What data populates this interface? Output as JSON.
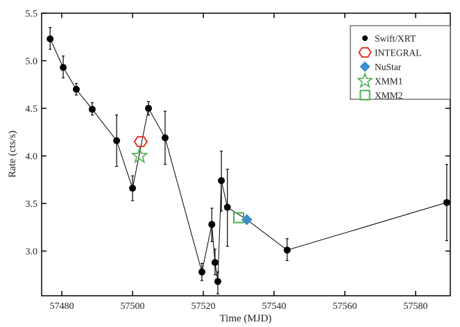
{
  "chart_data": {
    "type": "scatter",
    "xlabel": "Time (MJD)",
    "ylabel": "Rate (cts/s)",
    "xlim": [
      57474.3,
      57589.8
    ],
    "ylim": [
      2.53,
      5.5
    ],
    "xticks": [
      57480,
      57500,
      57520,
      57540,
      57560,
      57580
    ],
    "yticks": [
      3.0,
      3.5,
      4.0,
      4.5,
      5.0,
      5.5
    ],
    "ytick_labels": [
      "3.0",
      "3.5",
      "4.0",
      "4.5",
      "5.0",
      "5.5"
    ],
    "legend_position": "top-right",
    "series": [
      {
        "name": "Swift/XRT",
        "marker": "circle",
        "color": "#000000",
        "connected": true,
        "points": [
          {
            "x": 57476.7,
            "y": 5.23,
            "lo": 5.12,
            "hi": 5.35
          },
          {
            "x": 57480.4,
            "y": 4.93,
            "lo": 4.82,
            "hi": 5.05
          },
          {
            "x": 57484.1,
            "y": 4.7,
            "lo": 4.64,
            "hi": 4.76
          },
          {
            "x": 57488.6,
            "y": 4.49,
            "lo": 4.43,
            "hi": 4.56
          },
          {
            "x": 57495.5,
            "y": 4.16,
            "lo": 3.89,
            "hi": 4.43
          },
          {
            "x": 57500.0,
            "y": 3.66,
            "lo": 3.53,
            "hi": 3.79
          },
          {
            "x": 57504.5,
            "y": 4.5,
            "lo": 4.43,
            "hi": 4.57
          },
          {
            "x": 57509.2,
            "y": 4.19,
            "lo": 3.91,
            "hi": 4.47
          },
          {
            "x": 57519.6,
            "y": 2.78,
            "lo": 2.69,
            "hi": 2.87
          },
          {
            "x": 57522.4,
            "y": 3.28,
            "lo": 3.1,
            "hi": 3.45
          },
          {
            "x": 57523.3,
            "y": 2.88,
            "lo": 2.75,
            "hi": 3.02
          },
          {
            "x": 57524.1,
            "y": 2.68,
            "lo": 2.55,
            "hi": 2.78
          },
          {
            "x": 57525.1,
            "y": 3.74,
            "lo": 3.42,
            "hi": 4.05
          },
          {
            "x": 57526.8,
            "y": 3.46,
            "lo": 3.05,
            "hi": 3.86
          },
          {
            "x": 57532.3,
            "y": 3.33,
            "lo": 3.33,
            "hi": 3.33,
            "via": true
          },
          {
            "x": 57543.7,
            "y": 3.01,
            "lo": 2.9,
            "hi": 3.13
          },
          {
            "x": 57588.8,
            "y": 3.51,
            "lo": 3.11,
            "hi": 3.91
          }
        ]
      },
      {
        "name": "INTEGRAL",
        "marker": "hexagon",
        "color": "#e0352b",
        "points": [
          {
            "x": 57502.3,
            "y": 4.15
          }
        ]
      },
      {
        "name": "NuStar",
        "marker": "diamond",
        "color": "#3a8fcf",
        "points": [
          {
            "x": 57532.3,
            "y": 3.33
          }
        ]
      },
      {
        "name": "XMM1",
        "marker": "star",
        "color": "#4caf50",
        "points": [
          {
            "x": 57502.0,
            "y": 4.0
          }
        ]
      },
      {
        "name": "XMM2",
        "marker": "square",
        "color": "#4caf50",
        "points": [
          {
            "x": 57530.0,
            "y": 3.35
          }
        ]
      }
    ]
  }
}
